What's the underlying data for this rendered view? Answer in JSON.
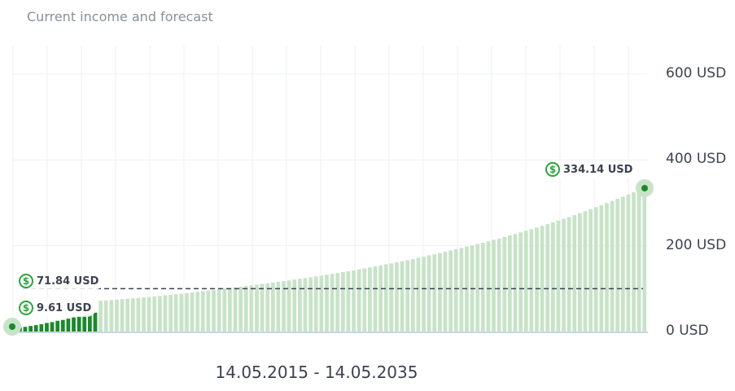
{
  "title": "Current income and forecast",
  "date_range": "14.05.2015 - 14.05.2035",
  "colors": {
    "bar_forecast": "#c8e3c8",
    "bar_current": "#1b8a2a",
    "accent": "#2aa53d",
    "target_line": "#3d4250"
  },
  "callouts": {
    "end": {
      "label": "334.14 USD",
      "icon": "dollar-cycle-icon"
    },
    "target": {
      "label": "71.84 USD",
      "icon": "dollar-cycle-icon"
    },
    "current": {
      "label": "9.61 USD",
      "icon": "dollar-cycle-icon"
    }
  },
  "chart_data": {
    "type": "bar",
    "title": "Current income and forecast",
    "xlabel": "14.05.2015 - 14.05.2035",
    "ylabel": "",
    "unit": "USD",
    "ylim": [
      0,
      600
    ],
    "yticks": [
      {
        "value": 0,
        "label": "0 USD"
      },
      {
        "value": 200,
        "label": "200 USD"
      },
      {
        "value": 400,
        "label": "400 USD"
      },
      {
        "value": 600,
        "label": "600 USD"
      }
    ],
    "grid": true,
    "series": [
      {
        "values": [
          9.61,
          11,
          13,
          15,
          17,
          20,
          22,
          25,
          27,
          30,
          33,
          35,
          38,
          40,
          44,
          71.84,
          72.5,
          73.5,
          74.5,
          75.5,
          76.5,
          77.5,
          78.5,
          79.5,
          80.5,
          82,
          83,
          84.5,
          85.5,
          87,
          88,
          89.5,
          91,
          92.5,
          94,
          95.5,
          97,
          98.5,
          100,
          101.5,
          103,
          104.5,
          106,
          107.5,
          109,
          111,
          112.5,
          114,
          116,
          117.5,
          119,
          121,
          123,
          124.5,
          126.5,
          128.5,
          130.5,
          132.5,
          134.5,
          136.5,
          138.5,
          140.5,
          142.5,
          145,
          147,
          149.5,
          152,
          154,
          156.5,
          159,
          161.5,
          164,
          166.5,
          169,
          172,
          174.5,
          177.5,
          180,
          183,
          186,
          189,
          192,
          195,
          198,
          201,
          204,
          207,
          210.5,
          214,
          217,
          220.5,
          224,
          227.5,
          231,
          235,
          238.5,
          242.5,
          246.5,
          250.5,
          254.5,
          258.5,
          263,
          267,
          271.5,
          276,
          280.5,
          285,
          290,
          294.5,
          299.5,
          304.5,
          309.5,
          314.5,
          319.5,
          324.5,
          329.5,
          334.14
        ]
      }
    ],
    "current_count": 15,
    "target_value": 100,
    "annotations": [
      "334.14 USD",
      "71.84 USD",
      "9.61 USD"
    ]
  }
}
